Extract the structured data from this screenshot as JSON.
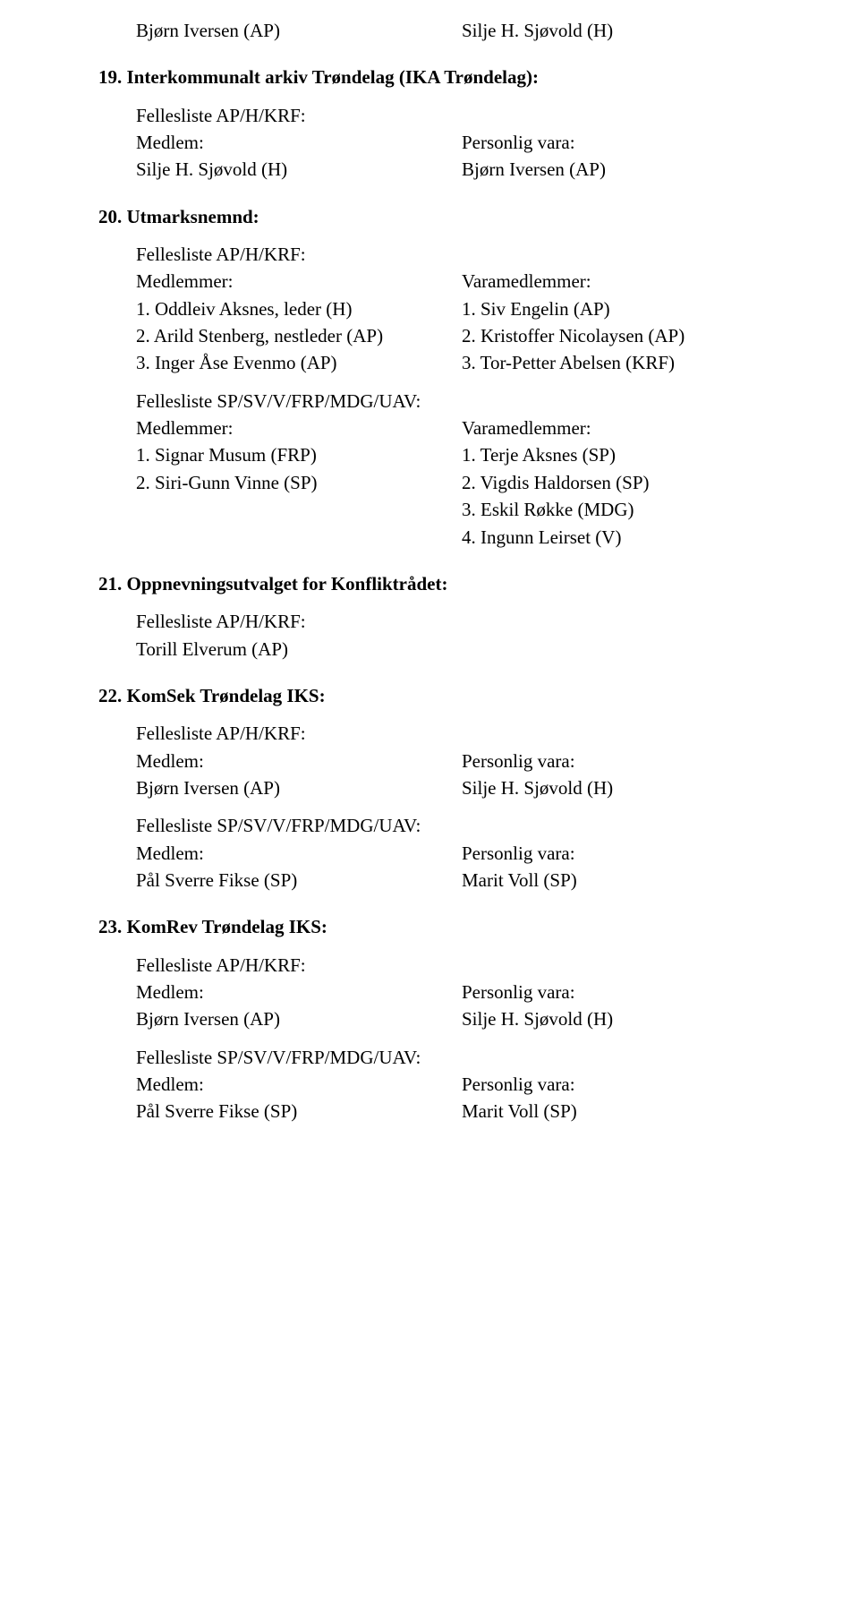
{
  "top": {
    "left": "Bjørn Iversen (AP)",
    "right": "Silje H. Sjøvold (H)"
  },
  "s19": {
    "heading": "19. Interkommunalt arkiv Trøndelag (IKA Trøndelag):",
    "groupLabel": "Fellesliste AP/H/KRF:",
    "leftLabel": "Medlem:",
    "rightLabel": "Personlig vara:",
    "leftVal": "Silje H. Sjøvold (H)",
    "rightVal": "Bjørn Iversen (AP)"
  },
  "s20": {
    "heading": "20. Utmarksnemnd:",
    "groupA": {
      "label": "Fellesliste AP/H/KRF:",
      "leftLabel": "Medlemmer:",
      "rightLabel": "Varamedlemmer:",
      "l1": "1. Oddleiv Aksnes, leder (H)",
      "r1": "1. Siv Engelin (AP)",
      "l2": "2. Arild Stenberg, nestleder (AP)",
      "r2": "2. Kristoffer Nicolaysen (AP)",
      "l3": "3. Inger Åse Evenmo (AP)",
      "r3": "3. Tor-Petter Abelsen (KRF)"
    },
    "groupB": {
      "label": "Fellesliste SP/SV/V/FRP/MDG/UAV:",
      "leftLabel": "Medlemmer:",
      "rightLabel": "Varamedlemmer:",
      "l1": "1. Signar Musum (FRP)",
      "r1": "1. Terje Aksnes (SP)",
      "l2": "2. Siri-Gunn Vinne (SP)",
      "r2": "2. Vigdis Haldorsen (SP)",
      "r3": "3. Eskil Røkke (MDG)",
      "r4": "4. Ingunn Leirset (V)"
    }
  },
  "s21": {
    "heading": "21. Oppnevningsutvalget for Konfliktrådet:",
    "groupLabel": "Fellesliste AP/H/KRF:",
    "line": "Torill Elverum (AP)"
  },
  "s22": {
    "heading": "22. KomSek Trøndelag IKS:",
    "groupA": {
      "label": "Fellesliste AP/H/KRF:",
      "leftLabel": "Medlem:",
      "rightLabel": "Personlig vara:",
      "leftVal": "Bjørn Iversen (AP)",
      "rightVal": "Silje H. Sjøvold (H)"
    },
    "groupB": {
      "label": "Fellesliste SP/SV/V/FRP/MDG/UAV:",
      "leftLabel": "Medlem:",
      "rightLabel": "Personlig vara:",
      "leftVal": "Pål Sverre Fikse (SP)",
      "rightVal": "Marit Voll (SP)"
    }
  },
  "s23": {
    "heading": "23. KomRev Trøndelag IKS:",
    "groupA": {
      "label": "Fellesliste AP/H/KRF:",
      "leftLabel": "Medlem:",
      "rightLabel": "Personlig vara:",
      "leftVal": "Bjørn Iversen (AP)",
      "rightVal": "Silje H. Sjøvold (H)"
    },
    "groupB": {
      "label": "Fellesliste SP/SV/V/FRP/MDG/UAV:",
      "leftLabel": "Medlem:",
      "rightLabel": "Personlig vara:",
      "leftVal": "Pål Sverre Fikse (SP)",
      "rightVal": "Marit Voll (SP)"
    }
  }
}
